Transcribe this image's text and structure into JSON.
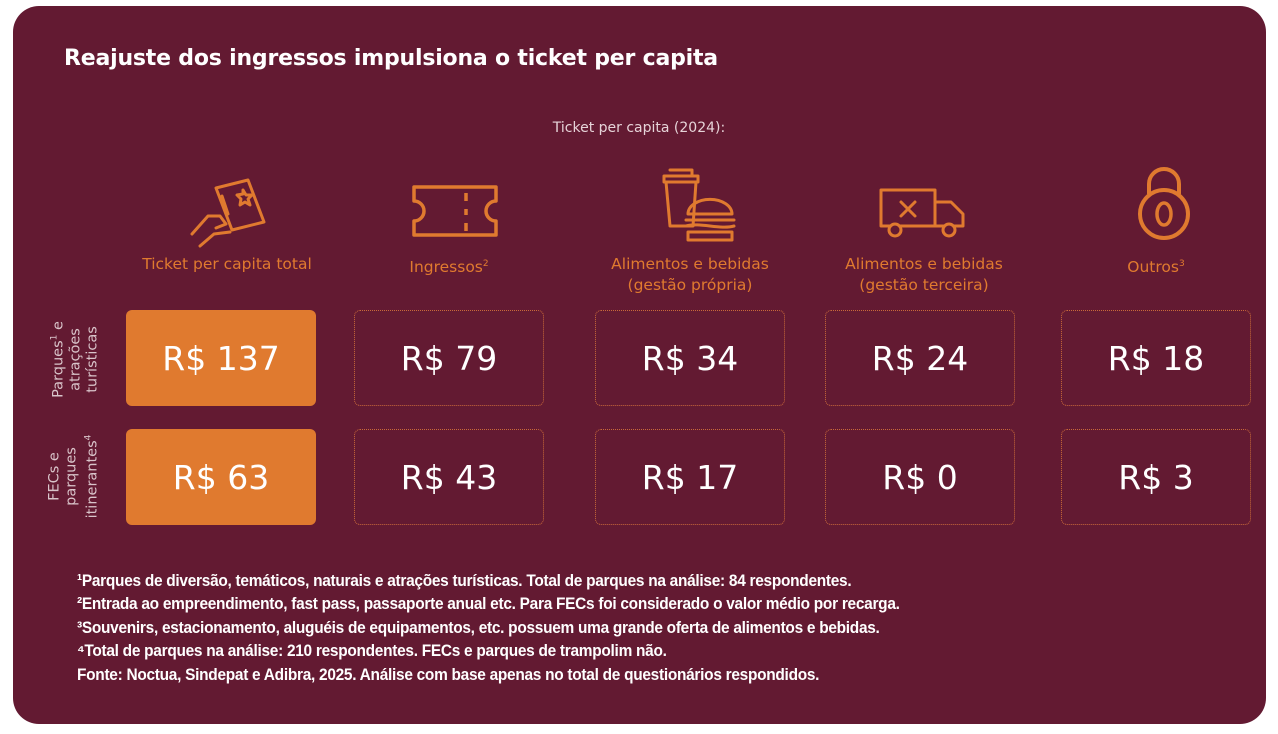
{
  "title": "Reajuste dos ingressos impulsiona o ticket per capita",
  "chart_data": {
    "type": "table",
    "subtitle": "Ticket per capita (2024):",
    "columns": [
      {
        "label": "Ticket per capita total",
        "sup": "",
        "line2": "",
        "icon": "ticket-hand-icon"
      },
      {
        "label": "Ingressos",
        "sup": "2",
        "line2": "",
        "icon": "ticket-icon"
      },
      {
        "label": "Alimentos e bebidas",
        "sup": "",
        "line2": "(gestão própria)",
        "icon": "food-drink-icon"
      },
      {
        "label": "Alimentos e bebidas",
        "sup": "",
        "line2": "(gestão terceira)",
        "icon": "delivery-truck-icon"
      },
      {
        "label": "Outros",
        "sup": "3",
        "line2": "",
        "icon": "padlock-icon"
      }
    ],
    "rows": [
      {
        "label_lines": [
          "Parques",
          "atrações",
          "turísticas"
        ],
        "sup": "1",
        "label_suffix": " e",
        "display": [
          "R$ 137",
          "R$ 79",
          "R$ 34",
          "R$ 24",
          "R$ 18"
        ],
        "values": [
          137,
          79,
          34,
          24,
          18
        ]
      },
      {
        "label_lines": [
          "FECs e",
          "parques",
          "itinerantes"
        ],
        "sup": "4",
        "label_suffix": "",
        "display": [
          "R$ 63",
          "R$ 43",
          "R$ 17",
          "R$ 0",
          "R$ 3"
        ],
        "values": [
          63,
          43,
          17,
          0,
          3
        ]
      }
    ],
    "unit": "R$"
  },
  "footnotes": [
    "¹Parques de diversão, temáticos, naturais e atrações turísticas. Total de parques na análise: 84 respondentes.",
    "²Entrada ao empreendimento, fast pass, passaporte anual etc. Para FECs foi considerado o valor médio por recarga.",
    "³Souvenirs, estacionamento, aluguéis de equipamentos, etc.  possuem uma grande oferta de alimentos e bebidas.",
    "⁴Total de parques na análise: 210 respondentes. FECs e parques de trampolim não.",
    "Fonte: Noctua, Sindepat e Adibra, 2025. Análise com base apenas no total de questionários respondidos."
  ],
  "colors": {
    "background": "#631a32",
    "accent": "#e07a2f",
    "text": "#ffffff"
  }
}
